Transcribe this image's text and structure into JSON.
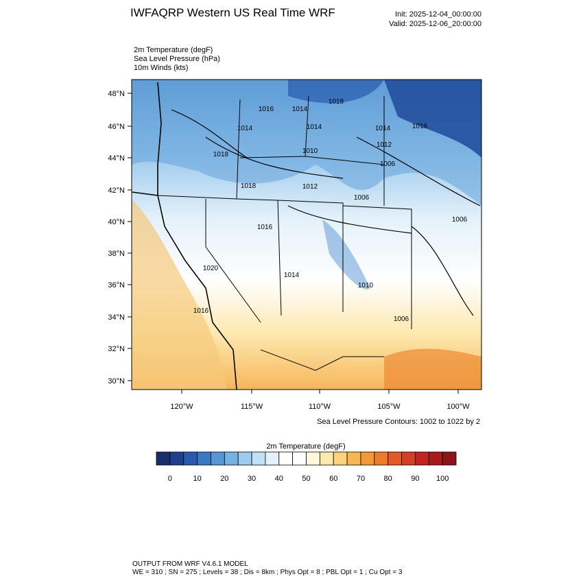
{
  "header": {
    "title": "IWFAQRP Western US Real Time WRF",
    "init": "Init: 2025-12-04_00:00:00",
    "valid": "Valid: 2025-12-06_20:00:00"
  },
  "fields": [
    "2m Temperature   (degF)",
    "Sea Level Pressure   (hPa)",
    "10m Winds   (kts)"
  ],
  "map": {
    "lat_labels": [
      "48°N",
      "46°N",
      "44°N",
      "42°N",
      "40°N",
      "38°N",
      "36°N",
      "34°N",
      "32°N",
      "30°N"
    ],
    "lon_labels": [
      "120°W",
      "115°W",
      "110°W",
      "105°W",
      "100°W"
    ],
    "contour_labels": [
      "1016",
      "1014",
      "1018",
      "1014",
      "1014",
      "1014",
      "1016",
      "1018",
      "1010",
      "1012",
      "1006",
      "1018",
      "1012",
      "1006",
      "1006",
      "1016",
      "1020",
      "1014",
      "1010",
      "1016",
      "1006"
    ],
    "contour_note": "Sea Level Pressure Contours: 1002 to 1022 by 2"
  },
  "colorbar": {
    "title": "2m Temperature  (degF)",
    "colors": [
      "#1a2d6b",
      "#213f8f",
      "#2a5aaf",
      "#3b78c4",
      "#5596d4",
      "#77b2e3",
      "#9ccbee",
      "#c2e0f5",
      "#e4f1fa",
      "#ffffff",
      "#ffffff",
      "#fff6dc",
      "#fde8ae",
      "#fbd27e",
      "#f8b552",
      "#f49938",
      "#ee7a2c",
      "#e35a28",
      "#d43e26",
      "#c02524",
      "#a81a1e",
      "#8c1418"
    ],
    "labels": [
      "0",
      "10",
      "20",
      "30",
      "40",
      "50",
      "60",
      "70",
      "80",
      "90",
      "100"
    ]
  },
  "footer": {
    "line1": "OUTPUT FROM WRF V4.6.1 MODEL",
    "line2": "WE = 310 ; SN = 275 ; Levels = 38 ; Dis = 8km ; Phys Opt = 8 ; PBL Opt = 1 ; Cu Opt = 3"
  }
}
